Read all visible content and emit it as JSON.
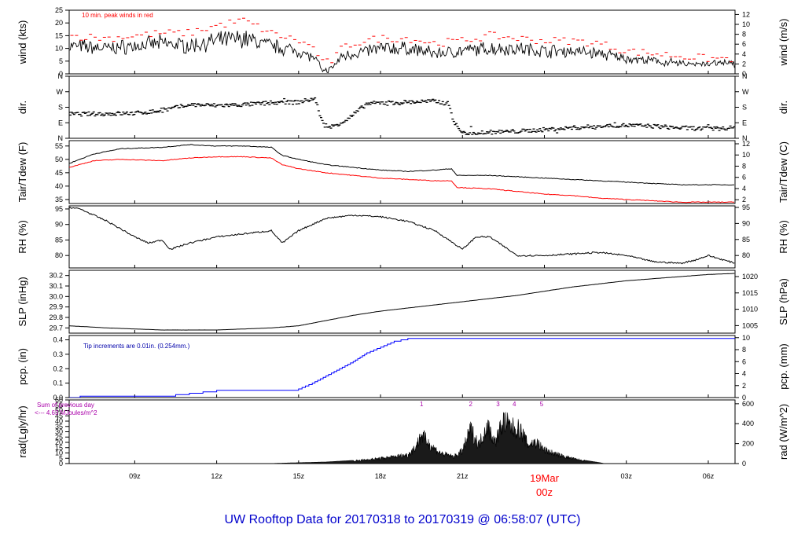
{
  "title": "UW Rooftop Data for 20170318  to  20170319 @ 06:58:07  (UTC)",
  "colors": {
    "series": "#000000",
    "dewpoint": "#ff0000",
    "peak": "#ff0000",
    "precip": "#0000ff",
    "annotation": "#0000aa",
    "radiation_note": "#aa00aa",
    "time_marker": "#ff0000",
    "title": "#0000cc"
  },
  "time_axis": {
    "range_hours": [
      6.6,
      30.98
    ],
    "ticks": [
      {
        "t": 9,
        "label": "09z"
      },
      {
        "t": 12,
        "label": "12z"
      },
      {
        "t": 15,
        "label": "15z"
      },
      {
        "t": 18,
        "label": "18z"
      },
      {
        "t": 21,
        "label": "21z"
      },
      {
        "t": 27,
        "label": "03z"
      },
      {
        "t": 30,
        "label": "06z"
      }
    ],
    "day_marker": {
      "t": 24,
      "date": "19Mar",
      "label": "00z"
    }
  },
  "chart_data": [
    {
      "type": "line",
      "key": "wind",
      "ylabel_left": "wind (kts)",
      "ylabel_right": "wind (m/s)",
      "ylim": [
        0,
        25
      ],
      "yticks_left": [
        "0",
        "5",
        "10",
        "15",
        "20",
        "25"
      ],
      "yticks_right": [
        "0",
        "2",
        "4",
        "6",
        "8",
        "10",
        "12"
      ],
      "annotation": "10 min. peak winds in red",
      "x": [
        6.6,
        8,
        9,
        10,
        11,
        12,
        13,
        14,
        15,
        15.6,
        15.9,
        16.2,
        16.6,
        17,
        18,
        19,
        20,
        21,
        22,
        23,
        24,
        25,
        26,
        27,
        28,
        29,
        30,
        30.98
      ],
      "values": [
        11,
        10,
        11,
        12,
        11,
        13,
        14,
        11,
        9,
        6,
        1,
        2,
        7,
        8,
        10,
        10,
        8,
        9,
        10,
        10,
        9,
        9,
        8,
        6,
        5,
        4,
        4,
        4
      ],
      "peaks": [
        15,
        14,
        15,
        16,
        16,
        19,
        21,
        16,
        13,
        10,
        4,
        5,
        10,
        12,
        14,
        14,
        12,
        13,
        15,
        14,
        13,
        13,
        12,
        9,
        8,
        7,
        6,
        6
      ]
    },
    {
      "type": "scatter",
      "key": "dir",
      "ylabel_left": "dir.",
      "ylabel_right": "dir.",
      "ylim": [
        0,
        360
      ],
      "yticks_left": [
        "N",
        "E",
        "S",
        "W",
        "N"
      ],
      "yticks_right": [
        "N",
        "E",
        "S",
        "W",
        "N"
      ],
      "x": [
        6.6,
        8,
        9,
        10,
        11,
        12,
        13,
        14,
        15,
        15.6,
        15.9,
        16.1,
        16.4,
        16.8,
        17.5,
        18,
        19,
        20,
        20.5,
        20.7,
        21,
        22,
        23,
        24,
        25,
        26,
        27,
        28,
        29,
        30,
        30.98
      ],
      "values": [
        140,
        142,
        145,
        160,
        195,
        190,
        195,
        205,
        210,
        230,
        80,
        60,
        80,
        110,
        200,
        205,
        210,
        215,
        200,
        90,
        30,
        35,
        40,
        50,
        60,
        70,
        75,
        70,
        60,
        55,
        60
      ]
    },
    {
      "type": "line",
      "key": "temp",
      "ylabel_left": "Tair/Tdew (F)",
      "ylabel_right": "Tair/Tdew (C)",
      "ylim": [
        33.5,
        57
      ],
      "yticks_left": [
        "35",
        "40",
        "45",
        "50",
        "55"
      ],
      "yticks_right": [
        "2",
        "4",
        "6",
        "8",
        "10",
        "12"
      ],
      "x": [
        6.6,
        7.5,
        8.5,
        10,
        11,
        12,
        13,
        14,
        14.4,
        15,
        16,
        17,
        18,
        19,
        20,
        20.6,
        20.8,
        22,
        23,
        24,
        25,
        26,
        27,
        28,
        29,
        30,
        30.98
      ],
      "series": [
        {
          "name": "Tair",
          "values": [
            48.5,
            52,
            54,
            54.5,
            55.5,
            55,
            55,
            54.5,
            51.5,
            50,
            48,
            47,
            46,
            45.5,
            46,
            46.5,
            44,
            44,
            43.5,
            43,
            42.5,
            42,
            41.5,
            41,
            40.5,
            40.5,
            40.5
          ]
        },
        {
          "name": "Tdew",
          "values": [
            47,
            49.5,
            50,
            49.5,
            50.5,
            51,
            51,
            50.5,
            48,
            46.5,
            45,
            44,
            43,
            42.5,
            42,
            42,
            39.5,
            39,
            38,
            37,
            36.5,
            35.5,
            35,
            34.5,
            34,
            34,
            34
          ]
        }
      ]
    },
    {
      "type": "line",
      "key": "rh",
      "ylabel_left": "RH (%)",
      "ylabel_right": "RH (%)",
      "ylim": [
        76,
        96
      ],
      "yticks_left": [
        "80",
        "85",
        "90",
        "95"
      ],
      "yticks_right": [
        "80",
        "85",
        "90",
        "95"
      ],
      "x": [
        6.6,
        7,
        8,
        9,
        9.5,
        10,
        10.3,
        11,
        12,
        13,
        14,
        14.4,
        15,
        16,
        17,
        18,
        19,
        20,
        20.5,
        21,
        21.5,
        22,
        23,
        24,
        25,
        26,
        27,
        28,
        29,
        29.5,
        30,
        30.98
      ],
      "values": [
        95.5,
        95,
        91,
        86,
        84,
        85,
        82,
        84,
        86,
        87,
        88,
        84,
        88,
        92,
        93,
        92.5,
        91,
        88,
        85,
        82,
        86,
        86,
        80,
        80,
        80.5,
        81,
        80,
        78,
        77.5,
        78.5,
        80,
        77.5
      ]
    },
    {
      "type": "line",
      "key": "slp",
      "ylabel_left": "SLP (inHg)",
      "ylabel_right": "SLP (hPa)",
      "ylim": [
        29.65,
        30.25
      ],
      "yticks_left": [
        "29.7",
        "29.8",
        "29.9",
        "30.0",
        "30.1",
        "30.2"
      ],
      "yticks_right": [
        "1005",
        "1010",
        "1015",
        "1020"
      ],
      "x": [
        6.6,
        8,
        9,
        10,
        11,
        12,
        13,
        14,
        15,
        16,
        17,
        18,
        19,
        20,
        21,
        22,
        23,
        24,
        25,
        26,
        27,
        28,
        29,
        30,
        30.98
      ],
      "values": [
        29.72,
        29.7,
        29.69,
        29.68,
        29.68,
        29.68,
        29.69,
        29.7,
        29.72,
        29.77,
        29.82,
        29.86,
        29.89,
        29.92,
        29.95,
        29.98,
        30.01,
        30.05,
        30.09,
        30.12,
        30.15,
        30.17,
        30.19,
        30.21,
        30.22
      ]
    },
    {
      "type": "line",
      "key": "pcp",
      "ylabel_left": "pcp. (in)",
      "ylabel_right": "pcp. (mm)",
      "ylim": [
        0,
        0.43
      ],
      "yticks_left": [
        "0.0",
        "0.1",
        "0.2",
        "0.3",
        "0.4"
      ],
      "yticks_right": [
        "0",
        "2",
        "4",
        "6",
        "8",
        "10"
      ],
      "annotation": "Tip increments are 0.01in. (0.254mm.)",
      "x": [
        6.6,
        6.9,
        7,
        10.3,
        10.5,
        11,
        11.5,
        12,
        14.8,
        15,
        15.5,
        16,
        16.5,
        17,
        17.5,
        18,
        18.5,
        19,
        30.98
      ],
      "values": [
        0,
        0,
        0.01,
        0.01,
        0.02,
        0.03,
        0.04,
        0.05,
        0.05,
        0.06,
        0.1,
        0.15,
        0.2,
        0.25,
        0.31,
        0.35,
        0.39,
        0.41,
        0.41
      ]
    },
    {
      "type": "area",
      "key": "rad",
      "ylabel_left": "rad(Lgly/hr)",
      "ylabel_right": "rad (W/m^2)",
      "ylim": [
        0,
        60
      ],
      "yticks_left": [
        "0",
        "5",
        "10",
        "15",
        "20",
        "25",
        "30",
        "35",
        "40",
        "45",
        "50",
        "55",
        "60"
      ],
      "yticks_right": [
        "0",
        "200",
        "400",
        "600"
      ],
      "note": [
        "Sum of previous day",
        "<--- 4.63 MJoules/m^2"
      ],
      "markers": [
        {
          "t": 19.5,
          "label": "1"
        },
        {
          "t": 21.3,
          "label": "2"
        },
        {
          "t": 22.3,
          "label": "3"
        },
        {
          "t": 22.9,
          "label": "4"
        },
        {
          "t": 23.9,
          "label": "5"
        }
      ],
      "x": [
        6.6,
        13.9,
        14.5,
        16,
        17,
        18,
        19,
        19.3,
        19.5,
        19.8,
        20.2,
        20.7,
        21,
        21.3,
        21.6,
        21.9,
        22.2,
        22.5,
        22.8,
        23.1,
        23.4,
        23.7,
        24,
        24.5,
        25,
        25.5,
        26,
        26.2,
        30.98
      ],
      "values": [
        0,
        0,
        0.5,
        1.5,
        3,
        6,
        10,
        20,
        34,
        22,
        12,
        8,
        15,
        40,
        22,
        45,
        25,
        50,
        42,
        40,
        22,
        25,
        16,
        10,
        6,
        3,
        1,
        0,
        0
      ]
    }
  ]
}
